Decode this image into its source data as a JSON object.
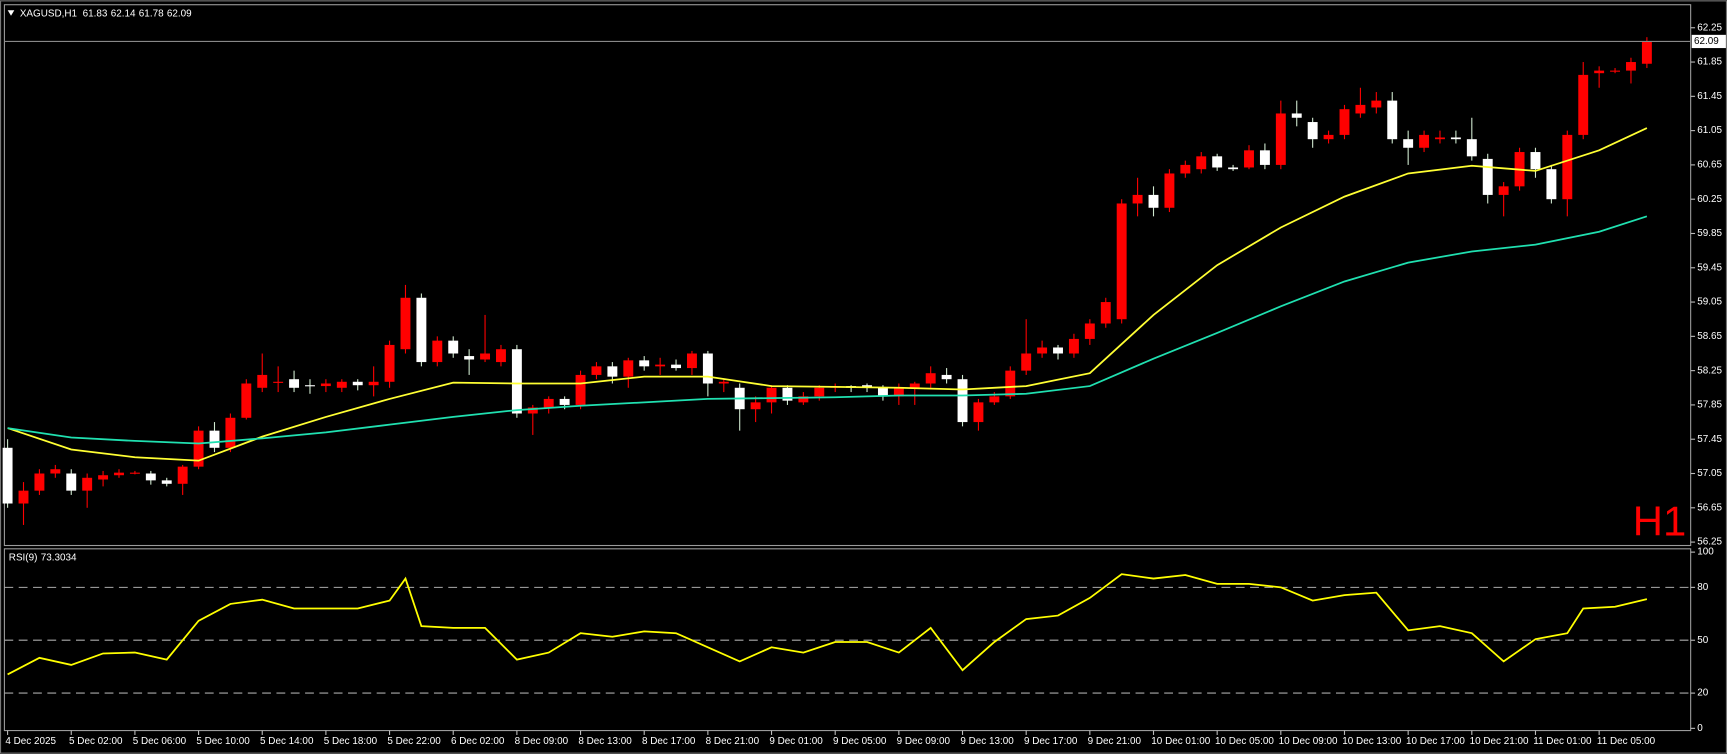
{
  "chart_data": [
    {
      "type": "candlestick",
      "title": "XAGUSD,H1",
      "timeframe": "H1",
      "up_color": "#ff0000",
      "down_color": "#ffffff",
      "wick_color": "#cfe8cf",
      "xlim": [
        -0.2,
        105.75
      ],
      "ylim": [
        56.21,
        62.48
      ],
      "yticks": [
        62.25,
        61.85,
        61.45,
        61.05,
        60.65,
        60.25,
        59.85,
        59.45,
        59.05,
        58.65,
        58.25,
        57.85,
        57.45,
        57.05,
        56.65,
        56.25
      ],
      "xlabels": [
        "4 Dec 2025",
        "5 Dec 02:00",
        "5 Dec 06:00",
        "5 Dec 10:00",
        "5 Dec 14:00",
        "5 Dec 18:00",
        "5 Dec 22:00",
        "6 Dec 02:00",
        "8 Dec 09:00",
        "8 Dec 13:00",
        "8 Dec 17:00",
        "8 Dec 21:00",
        "9 Dec 01:00",
        "9 Dec 05:00",
        "9 Dec 09:00",
        "9 Dec 13:00",
        "9 Dec 17:00",
        "9 Dec 21:00",
        "10 Dec 01:00",
        "10 Dec 05:00",
        "10 Dec 09:00",
        "10 Dec 13:00",
        "10 Dec 17:00",
        "10 Dec 21:00",
        "11 Dec 01:00",
        "11 Dec 05:00"
      ],
      "open": [
        57.35,
        56.7,
        56.85,
        57.05,
        57.05,
        56.85,
        56.98,
        57.03,
        57.06,
        57.05,
        56.97,
        56.93,
        57.13,
        57.55,
        57.35,
        57.7,
        58.05,
        58.12,
        58.15,
        58.08,
        58.07,
        58.05,
        58.12,
        58.08,
        58.12,
        58.5,
        59.1,
        58.35,
        58.6,
        58.42,
        58.38,
        58.35,
        58.5,
        57.75,
        57.82,
        57.92,
        57.85,
        58.2,
        58.3,
        58.18,
        58.37,
        58.3,
        58.32,
        58.28,
        58.45,
        58.1,
        58.05,
        57.8,
        57.88,
        58.05,
        57.88,
        57.95,
        58.05,
        58.07,
        58.08,
        58.05,
        57.95,
        58.05,
        58.1,
        58.2,
        58.15,
        57.65,
        57.88,
        57.95,
        58.25,
        58.45,
        58.52,
        58.45,
        58.62,
        58.8,
        58.85,
        60.2,
        60.3,
        60.15,
        60.55,
        60.6,
        60.75,
        60.62,
        60.62,
        60.82,
        60.65,
        61.25,
        61.15,
        60.95,
        61.0,
        61.25,
        61.32,
        61.4,
        60.95,
        60.85,
        60.95,
        60.97,
        60.95,
        60.72,
        60.3,
        60.4,
        60.8,
        60.6,
        60.25,
        61.0,
        61.72,
        61.75,
        61.75,
        61.83
      ],
      "high": [
        57.45,
        56.95,
        57.1,
        57.15,
        57.1,
        57.05,
        57.08,
        57.1,
        57.08,
        57.08,
        57.0,
        57.15,
        57.6,
        57.65,
        57.75,
        58.15,
        58.45,
        58.3,
        58.25,
        58.15,
        58.15,
        58.15,
        58.15,
        58.3,
        58.6,
        59.25,
        59.15,
        58.65,
        58.65,
        58.5,
        58.9,
        58.55,
        58.55,
        57.85,
        57.95,
        57.95,
        58.25,
        58.35,
        58.35,
        58.4,
        58.42,
        58.4,
        58.38,
        58.48,
        58.48,
        58.15,
        58.1,
        57.95,
        58.08,
        58.08,
        58.0,
        58.08,
        58.1,
        58.08,
        58.1,
        58.08,
        58.1,
        58.12,
        58.3,
        58.28,
        58.2,
        57.92,
        58.0,
        58.3,
        58.85,
        58.6,
        58.55,
        58.68,
        58.85,
        59.1,
        60.25,
        60.5,
        60.4,
        60.6,
        60.7,
        60.8,
        60.78,
        60.65,
        60.88,
        60.9,
        61.4,
        61.4,
        61.2,
        61.05,
        61.35,
        61.55,
        61.5,
        61.5,
        61.05,
        61.05,
        61.05,
        61.05,
        61.2,
        60.78,
        60.45,
        60.85,
        60.85,
        60.65,
        61.05,
        61.85,
        61.8,
        61.78,
        61.9,
        62.14
      ],
      "low": [
        56.65,
        56.45,
        56.8,
        57.0,
        56.8,
        56.65,
        56.9,
        57.0,
        57.04,
        56.92,
        56.9,
        56.8,
        57.1,
        57.3,
        57.3,
        57.68,
        58.0,
        58.0,
        58.0,
        57.98,
        58.0,
        58.0,
        58.02,
        57.95,
        58.05,
        58.45,
        58.3,
        58.3,
        58.4,
        58.2,
        58.35,
        58.3,
        57.7,
        57.5,
        57.75,
        57.8,
        57.8,
        58.15,
        58.1,
        58.05,
        58.25,
        58.2,
        58.25,
        58.2,
        57.95,
        58.0,
        57.55,
        57.65,
        57.75,
        57.85,
        57.85,
        57.9,
        58.0,
        58.0,
        58.0,
        57.9,
        57.85,
        57.85,
        58.05,
        58.1,
        57.6,
        57.55,
        57.85,
        57.92,
        58.2,
        58.4,
        58.38,
        58.4,
        58.55,
        58.75,
        58.8,
        60.05,
        60.05,
        60.1,
        60.5,
        60.55,
        60.58,
        60.58,
        60.6,
        60.6,
        60.6,
        61.1,
        60.85,
        60.9,
        60.95,
        61.2,
        61.25,
        60.9,
        60.65,
        60.8,
        60.9,
        60.9,
        60.7,
        60.2,
        60.05,
        60.35,
        60.5,
        60.2,
        60.05,
        60.95,
        61.55,
        61.72,
        61.6,
        61.78
      ],
      "close": [
        56.7,
        56.85,
        57.05,
        57.1,
        56.85,
        57.0,
        57.03,
        57.06,
        57.06,
        56.97,
        56.93,
        57.13,
        57.55,
        57.35,
        57.7,
        58.1,
        58.2,
        58.12,
        58.05,
        58.07,
        58.1,
        58.12,
        58.08,
        58.12,
        58.55,
        59.1,
        58.35,
        58.6,
        58.45,
        58.38,
        58.45,
        58.5,
        57.75,
        57.82,
        57.92,
        57.85,
        58.2,
        58.3,
        58.18,
        58.37,
        58.3,
        58.32,
        58.28,
        58.45,
        58.1,
        58.12,
        57.8,
        57.88,
        58.05,
        57.9,
        57.95,
        58.05,
        58.07,
        58.05,
        58.05,
        57.95,
        58.05,
        58.1,
        58.22,
        58.15,
        57.65,
        57.88,
        57.95,
        58.25,
        58.45,
        58.52,
        58.45,
        58.62,
        58.8,
        59.05,
        60.2,
        60.3,
        60.15,
        60.55,
        60.65,
        60.75,
        60.62,
        60.6,
        60.82,
        60.65,
        61.25,
        61.2,
        60.95,
        61.0,
        61.3,
        61.35,
        61.4,
        60.95,
        60.85,
        61.0,
        60.97,
        60.95,
        60.75,
        60.3,
        60.4,
        60.8,
        60.6,
        60.25,
        61.0,
        61.7,
        61.75,
        61.75,
        61.85,
        62.09
      ],
      "lines": [
        {
          "color": "#ffff33",
          "x": [
            0,
            4,
            8,
            12,
            16,
            20,
            24,
            28,
            32,
            36,
            40,
            44,
            48,
            52,
            56,
            60,
            64,
            68,
            72,
            76,
            80,
            84,
            88,
            92,
            96,
            100,
            103
          ],
          "values": [
            57.58,
            57.33,
            57.24,
            57.2,
            57.48,
            57.71,
            57.92,
            58.11,
            58.1,
            58.1,
            58.18,
            58.18,
            58.07,
            58.06,
            58.05,
            58.03,
            58.07,
            58.22,
            58.9,
            59.48,
            59.92,
            60.28,
            60.55,
            60.64,
            60.58,
            60.82,
            61.08
          ]
        },
        {
          "color": "#20e0b0",
          "x": [
            0,
            4,
            8,
            12,
            16,
            20,
            24,
            28,
            32,
            36,
            40,
            44,
            48,
            52,
            56,
            60,
            64,
            68,
            72,
            76,
            80,
            84,
            88,
            92,
            96,
            100,
            103
          ],
          "values": [
            57.58,
            57.47,
            57.43,
            57.4,
            57.46,
            57.53,
            57.62,
            57.71,
            57.79,
            57.84,
            57.88,
            57.92,
            57.93,
            57.94,
            57.96,
            57.96,
            57.98,
            58.07,
            58.39,
            58.69,
            59.0,
            59.29,
            59.51,
            59.64,
            59.72,
            59.87,
            60.05
          ]
        }
      ]
    },
    {
      "type": "line",
      "xlim": [
        -0.2,
        105.75
      ],
      "ylim": [
        -1.25,
        101.25
      ],
      "yticks": [
        100,
        80,
        50,
        20,
        0
      ],
      "levels": [
        80,
        50,
        20
      ],
      "series": [
        {
          "name": "RSI(9)",
          "color": "#ffff00",
          "x": [
            0,
            2,
            4,
            6,
            8,
            10,
            12,
            14,
            16,
            18,
            20,
            22,
            24,
            25,
            26,
            28,
            30,
            32,
            34,
            36,
            38,
            40,
            42,
            44,
            46,
            48,
            50,
            52,
            54,
            56,
            58,
            60,
            62,
            64,
            66,
            68,
            70,
            72,
            74,
            76,
            78,
            80,
            82,
            84,
            86,
            88,
            90,
            92,
            94,
            96,
            98,
            99,
            101,
            103
          ],
          "values": [
            30.6,
            40,
            36,
            42.5,
            43,
            39,
            61,
            70.6,
            73,
            68,
            68,
            68,
            72.5,
            85,
            58,
            57,
            57,
            39,
            43,
            54,
            52,
            55,
            54,
            46,
            38,
            46,
            43,
            49,
            49,
            43,
            57,
            33,
            49,
            62,
            64,
            74,
            87.5,
            85,
            87,
            82,
            82,
            80,
            72.5,
            75.6,
            77,
            55.6,
            58,
            54,
            38,
            50.6,
            54,
            68,
            69,
            73.3034
          ]
        }
      ]
    }
  ]
}
